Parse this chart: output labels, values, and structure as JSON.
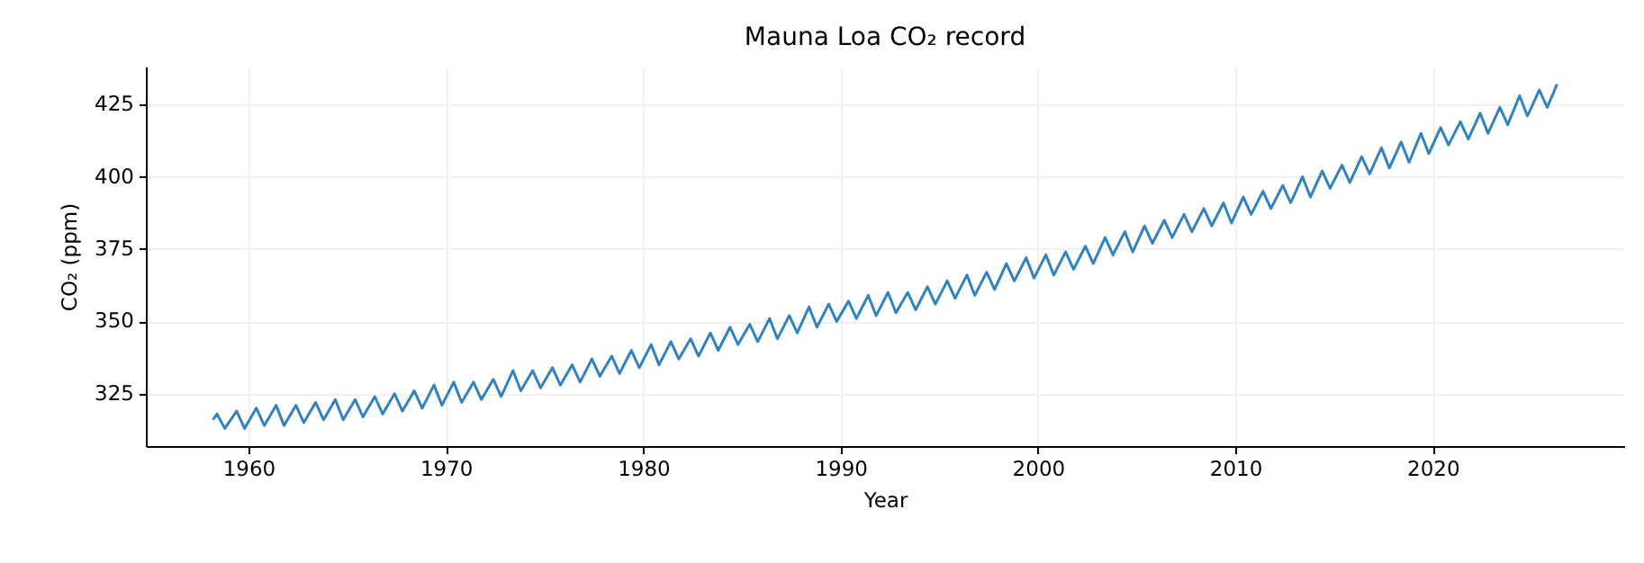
{
  "chart_data": {
    "type": "line",
    "title": "Mauna Loa CO₂ record",
    "xlabel": "Year",
    "ylabel": "CO₂ (ppm)",
    "x": [
      1958.2,
      1958.4,
      1958.8,
      1959.4,
      1959.8,
      1960.4,
      1960.8,
      1961.4,
      1961.8,
      1962.4,
      1962.8,
      1963.4,
      1963.8,
      1964.4,
      1964.8,
      1965.4,
      1965.8,
      1966.4,
      1966.8,
      1967.4,
      1967.8,
      1968.4,
      1968.8,
      1969.4,
      1969.8,
      1970.4,
      1970.8,
      1971.4,
      1971.8,
      1972.4,
      1972.8,
      1973.4,
      1973.8,
      1974.4,
      1974.8,
      1975.4,
      1975.8,
      1976.4,
      1976.8,
      1977.4,
      1977.8,
      1978.4,
      1978.8,
      1979.4,
      1979.8,
      1980.4,
      1980.8,
      1981.4,
      1981.8,
      1982.4,
      1982.8,
      1983.4,
      1983.8,
      1984.4,
      1984.8,
      1985.4,
      1985.8,
      1986.4,
      1986.8,
      1987.4,
      1987.8,
      1988.4,
      1988.8,
      1989.4,
      1989.8,
      1990.4,
      1990.8,
      1991.4,
      1991.8,
      1992.4,
      1992.8,
      1993.4,
      1993.8,
      1994.4,
      1994.8,
      1995.4,
      1995.8,
      1996.4,
      1996.8,
      1997.4,
      1997.8,
      1998.4,
      1998.8,
      1999.4,
      1999.8,
      2000.4,
      2000.8,
      2001.4,
      2001.8,
      2002.4,
      2002.8,
      2003.4,
      2003.8,
      2004.4,
      2004.8,
      2005.4,
      2005.8,
      2006.4,
      2006.8,
      2007.4,
      2007.8,
      2008.4,
      2008.8,
      2009.4,
      2009.8,
      2010.4,
      2010.8,
      2011.4,
      2011.8,
      2012.4,
      2012.8,
      2013.4,
      2013.8,
      2014.4,
      2014.8,
      2015.4,
      2015.8,
      2016.4,
      2016.8,
      2017.4,
      2017.8,
      2018.4,
      2018.8,
      2019.4,
      2019.8,
      2020.4,
      2020.8,
      2021.4,
      2021.8,
      2022.4,
      2022.8,
      2023.4,
      2023.8,
      2024.4,
      2024.8,
      2025.4,
      2025.8,
      2026.3
    ],
    "series": [
      {
        "color": "#3182bd",
        "values": [
          316,
          318,
          313,
          319,
          313,
          320,
          314,
          321,
          314,
          321,
          315,
          322,
          316,
          323,
          316,
          323,
          317,
          324,
          318,
          325,
          319,
          326,
          320,
          328,
          321,
          329,
          322,
          329,
          323,
          330,
          324,
          333,
          326,
          333,
          327,
          334,
          328,
          335,
          329,
          337,
          331,
          338,
          332,
          340,
          334,
          342,
          335,
          343,
          337,
          344,
          338,
          346,
          340,
          348,
          342,
          349,
          343,
          351,
          344,
          352,
          346,
          355,
          348,
          356,
          350,
          357,
          351,
          359,
          352,
          360,
          353,
          360,
          354,
          362,
          356,
          364,
          358,
          366,
          359,
          367,
          361,
          370,
          364,
          372,
          365,
          373,
          366,
          374,
          368,
          376,
          370,
          379,
          373,
          381,
          374,
          383,
          377,
          385,
          379,
          387,
          381,
          389,
          383,
          391,
          384,
          393,
          387,
          395,
          389,
          397,
          391,
          400,
          393,
          402,
          396,
          404,
          398,
          407,
          401,
          410,
          403,
          412,
          405,
          415,
          408,
          417,
          411,
          419,
          413,
          422,
          415,
          424,
          418,
          428,
          421,
          430,
          424,
          432
        ]
      }
    ],
    "xlim": [
      1954.8,
      2029.7
    ],
    "xticks": [
      1960,
      1970,
      1980,
      1990,
      2000,
      2010,
      2020
    ],
    "ylim": [
      306.9,
      438.1
    ],
    "yticks": [
      325,
      350,
      375,
      400,
      425
    ],
    "grid": true
  }
}
